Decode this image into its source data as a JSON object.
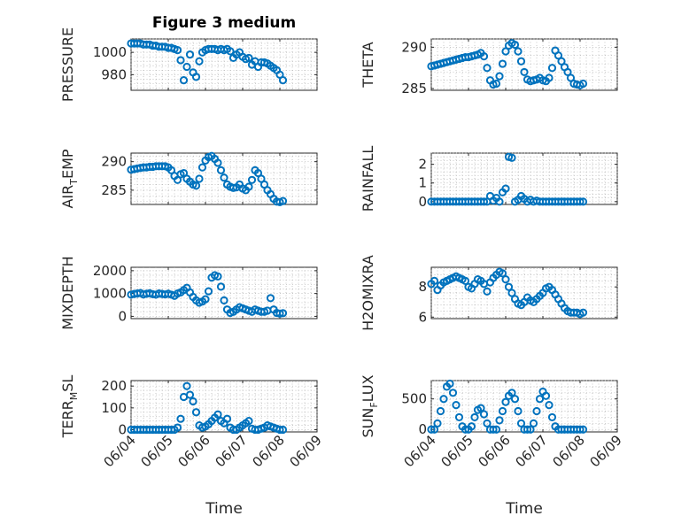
{
  "chart_data": [
    {
      "type": "scatter",
      "title": "Figure 3 medium",
      "ylabel": "PRESSURE",
      "yticks": [
        980,
        1000
      ],
      "ylim": [
        966,
        1012
      ],
      "x": [
        "06/04 0h",
        "06/04 2h",
        "06/04 4h",
        "06/04 6h",
        "06/04 8h",
        "06/04 10h",
        "06/04 12h",
        "06/04 14h",
        "06/04 16h",
        "06/04 18h",
        "06/04 20h",
        "06/04 22h",
        "06/05 0h",
        "06/05 2h",
        "06/05 4h",
        "06/05 6h",
        "06/05 8h",
        "06/05 10h",
        "06/05 12h",
        "06/05 14h",
        "06/05 16h",
        "06/05 18h",
        "06/05 20h",
        "06/05 22h",
        "06/06 0h",
        "06/06 2h",
        "06/06 4h",
        "06/06 6h",
        "06/06 8h",
        "06/06 10h",
        "06/06 12h",
        "06/06 14h",
        "06/06 16h",
        "06/06 18h",
        "06/06 20h",
        "06/06 22h",
        "06/07 0h",
        "06/07 2h",
        "06/07 4h",
        "06/07 6h",
        "06/07 8h",
        "06/07 10h",
        "06/07 12h",
        "06/07 14h",
        "06/07 16h",
        "06/07 18h",
        "06/07 20h",
        "06/07 22h",
        "06/08 0h",
        "06/08 2h"
      ],
      "y": [
        1008,
        1008,
        1008,
        1008,
        1007,
        1007,
        1007,
        1006,
        1006,
        1005,
        1005,
        1005,
        1004,
        1004,
        1003,
        1002,
        993,
        975,
        987,
        998,
        982,
        978,
        992,
        1000,
        1002,
        1003,
        1003,
        1003,
        1002,
        1003,
        1002,
        1003,
        1001,
        995,
        998,
        1000,
        996,
        994,
        995,
        989,
        992,
        987,
        991,
        991,
        990,
        988,
        986,
        984,
        980,
        975
      ]
    },
    {
      "type": "scatter",
      "ylabel": "THETA",
      "yticks": [
        285,
        290
      ],
      "ylim": [
        284.8,
        291
      ],
      "x": [
        "06/04 0h",
        "06/04 2h",
        "06/04 4h",
        "06/04 6h",
        "06/04 8h",
        "06/04 10h",
        "06/04 12h",
        "06/04 14h",
        "06/04 16h",
        "06/04 18h",
        "06/04 20h",
        "06/04 22h",
        "06/05 0h",
        "06/05 2h",
        "06/05 4h",
        "06/05 6h",
        "06/05 8h",
        "06/05 10h",
        "06/05 12h",
        "06/05 14h",
        "06/05 16h",
        "06/05 18h",
        "06/05 20h",
        "06/05 22h",
        "06/06 0h",
        "06/06 2h",
        "06/06 4h",
        "06/06 6h",
        "06/06 8h",
        "06/06 10h",
        "06/06 12h",
        "06/06 14h",
        "06/06 16h",
        "06/06 18h",
        "06/06 20h",
        "06/06 22h",
        "06/07 0h",
        "06/07 2h",
        "06/07 4h",
        "06/07 6h",
        "06/07 8h",
        "06/07 10h",
        "06/07 12h",
        "06/07 14h",
        "06/07 16h",
        "06/07 18h",
        "06/07 20h",
        "06/07 22h",
        "06/08 0h",
        "06/08 2h"
      ],
      "y": [
        287.7,
        287.8,
        287.9,
        288.0,
        288.1,
        288.2,
        288.3,
        288.4,
        288.5,
        288.6,
        288.7,
        288.8,
        288.8,
        288.9,
        289.0,
        289.1,
        289.3,
        288.9,
        287.5,
        286.0,
        285.5,
        285.6,
        286.5,
        288.0,
        289.5,
        290.2,
        290.5,
        290.3,
        289.5,
        288.3,
        287.0,
        286.1,
        285.9,
        286.0,
        286.1,
        286.3,
        286.0,
        285.9,
        286.3,
        287.5,
        289.6,
        289.0,
        288.3,
        287.6,
        287.0,
        286.3,
        285.6,
        285.5,
        285.4,
        285.6
      ]
    },
    {
      "type": "scatter",
      "ylabel": "AIR_TEMP",
      "yticks": [
        285,
        290
      ],
      "ylim": [
        282.5,
        291.5
      ],
      "x": [
        "06/04 0h",
        "06/04 2h",
        "06/04 4h",
        "06/04 6h",
        "06/04 8h",
        "06/04 10h",
        "06/04 12h",
        "06/04 14h",
        "06/04 16h",
        "06/04 18h",
        "06/04 20h",
        "06/04 22h",
        "06/05 0h",
        "06/05 2h",
        "06/05 4h",
        "06/05 6h",
        "06/05 8h",
        "06/05 10h",
        "06/05 12h",
        "06/05 14h",
        "06/05 16h",
        "06/05 18h",
        "06/05 20h",
        "06/05 22h",
        "06/06 0h",
        "06/06 2h",
        "06/06 4h",
        "06/06 6h",
        "06/06 8h",
        "06/06 10h",
        "06/06 12h",
        "06/06 14h",
        "06/06 16h",
        "06/06 18h",
        "06/06 20h",
        "06/06 22h",
        "06/07 0h",
        "06/07 2h",
        "06/07 4h",
        "06/07 6h",
        "06/07 8h",
        "06/07 10h",
        "06/07 12h",
        "06/07 14h",
        "06/07 16h",
        "06/07 18h",
        "06/07 20h",
        "06/07 22h",
        "06/08 0h",
        "06/08 2h"
      ],
      "y": [
        288.6,
        288.7,
        288.8,
        288.9,
        289.0,
        289.0,
        289.1,
        289.1,
        289.2,
        289.2,
        289.2,
        289.2,
        289.0,
        288.5,
        287.5,
        286.8,
        287.8,
        288.0,
        287.0,
        286.5,
        286.0,
        285.8,
        287.0,
        289.0,
        290.2,
        290.8,
        291.0,
        290.5,
        289.8,
        288.5,
        287.2,
        286.0,
        285.6,
        285.4,
        285.5,
        286.0,
        285.3,
        285.0,
        285.6,
        286.8,
        288.5,
        288.0,
        287.0,
        286.0,
        285.0,
        284.3,
        283.5,
        283.0,
        282.9,
        283.1
      ]
    },
    {
      "type": "scatter",
      "ylabel": "RAINFALL",
      "yticks": [
        0,
        1,
        2
      ],
      "ylim": [
        -0.15,
        2.6
      ],
      "x": [
        "06/04 0h",
        "06/04 2h",
        "06/04 4h",
        "06/04 6h",
        "06/04 8h",
        "06/04 10h",
        "06/04 12h",
        "06/04 14h",
        "06/04 16h",
        "06/04 18h",
        "06/04 20h",
        "06/04 22h",
        "06/05 0h",
        "06/05 2h",
        "06/05 4h",
        "06/05 6h",
        "06/05 8h",
        "06/05 10h",
        "06/05 12h",
        "06/05 14h",
        "06/05 16h",
        "06/05 18h",
        "06/05 20h",
        "06/05 22h",
        "06/06 0h",
        "06/06 2h",
        "06/06 4h",
        "06/06 6h",
        "06/06 8h",
        "06/06 10h",
        "06/06 12h",
        "06/06 14h",
        "06/06 16h",
        "06/06 18h",
        "06/06 20h",
        "06/06 22h",
        "06/07 0h",
        "06/07 2h",
        "06/07 4h",
        "06/07 6h",
        "06/07 8h",
        "06/07 10h",
        "06/07 12h",
        "06/07 14h",
        "06/07 16h",
        "06/07 18h",
        "06/07 20h",
        "06/07 22h",
        "06/08 0h",
        "06/08 2h"
      ],
      "y": [
        0,
        0,
        0,
        0,
        0,
        0,
        0,
        0,
        0,
        0,
        0,
        0,
        0,
        0,
        0,
        0,
        0,
        0,
        0,
        0.3,
        0.05,
        0.2,
        0,
        0.5,
        0.7,
        2.4,
        2.35,
        0,
        0.1,
        0.3,
        0.15,
        0,
        0.1,
        0,
        0.05,
        0,
        0,
        0,
        0,
        0,
        0,
        0,
        0,
        0,
        0,
        0,
        0,
        0,
        0,
        0
      ]
    },
    {
      "type": "scatter",
      "ylabel": "MIXDEPTH",
      "yticks": [
        0,
        1000,
        2000
      ],
      "ylim": [
        -100,
        2150
      ],
      "x": [
        "06/04 0h",
        "06/04 2h",
        "06/04 4h",
        "06/04 6h",
        "06/04 8h",
        "06/04 10h",
        "06/04 12h",
        "06/04 14h",
        "06/04 16h",
        "06/04 18h",
        "06/04 20h",
        "06/04 22h",
        "06/05 0h",
        "06/05 2h",
        "06/05 4h",
        "06/05 6h",
        "06/05 8h",
        "06/05 10h",
        "06/05 12h",
        "06/05 14h",
        "06/05 16h",
        "06/05 18h",
        "06/05 20h",
        "06/05 22h",
        "06/06 0h",
        "06/06 2h",
        "06/06 4h",
        "06/06 6h",
        "06/06 8h",
        "06/06 10h",
        "06/06 12h",
        "06/06 14h",
        "06/06 16h",
        "06/06 18h",
        "06/06 20h",
        "06/06 22h",
        "06/07 0h",
        "06/07 2h",
        "06/07 4h",
        "06/07 6h",
        "06/07 8h",
        "06/07 10h",
        "06/07 12h",
        "06/07 14h",
        "06/07 16h",
        "06/07 18h",
        "06/07 20h",
        "06/07 22h",
        "06/08 0h",
        "06/08 2h"
      ],
      "y": [
        950,
        980,
        1000,
        1020,
        960,
        990,
        1010,
        970,
        950,
        1000,
        980,
        960,
        990,
        950,
        900,
        1000,
        1050,
        1150,
        1250,
        1050,
        850,
        700,
        600,
        650,
        750,
        1100,
        1700,
        1800,
        1750,
        1300,
        700,
        300,
        150,
        200,
        300,
        400,
        350,
        300,
        250,
        200,
        300,
        250,
        200,
        200,
        250,
        800,
        300,
        150,
        120,
        140
      ]
    },
    {
      "type": "scatter",
      "ylabel": "H2OMIXRA",
      "yticks": [
        6,
        8
      ],
      "ylim": [
        5.9,
        9.3
      ],
      "x": [
        "06/04 0h",
        "06/04 2h",
        "06/04 4h",
        "06/04 6h",
        "06/04 8h",
        "06/04 10h",
        "06/04 12h",
        "06/04 14h",
        "06/04 16h",
        "06/04 18h",
        "06/04 20h",
        "06/04 22h",
        "06/05 0h",
        "06/05 2h",
        "06/05 4h",
        "06/05 6h",
        "06/05 8h",
        "06/05 10h",
        "06/05 12h",
        "06/05 14h",
        "06/05 16h",
        "06/05 18h",
        "06/05 20h",
        "06/05 22h",
        "06/06 0h",
        "06/06 2h",
        "06/06 4h",
        "06/06 6h",
        "06/06 8h",
        "06/06 10h",
        "06/06 12h",
        "06/06 14h",
        "06/06 16h",
        "06/06 18h",
        "06/06 20h",
        "06/06 22h",
        "06/07 0h",
        "06/07 2h",
        "06/07 4h",
        "06/07 6h",
        "06/07 8h",
        "06/07 10h",
        "06/07 12h",
        "06/07 14h",
        "06/07 16h",
        "06/07 18h",
        "06/07 20h",
        "06/07 22h",
        "06/08 0h",
        "06/08 2h"
      ],
      "y": [
        8.2,
        8.4,
        7.8,
        8.1,
        8.3,
        8.4,
        8.5,
        8.6,
        8.7,
        8.6,
        8.5,
        8.4,
        8.0,
        7.9,
        8.2,
        8.5,
        8.4,
        8.2,
        7.7,
        8.3,
        8.6,
        8.8,
        9.0,
        8.9,
        8.5,
        8.0,
        7.6,
        7.2,
        6.9,
        6.8,
        7.0,
        7.3,
        7.1,
        7.0,
        7.2,
        7.4,
        7.6,
        7.9,
        8.0,
        7.8,
        7.5,
        7.2,
        6.9,
        6.6,
        6.4,
        6.3,
        6.3,
        6.3,
        6.2,
        6.3
      ]
    },
    {
      "type": "scatter",
      "ylabel": "TERR_MSL",
      "yticks": [
        0,
        100,
        200
      ],
      "ylim": [
        -10,
        225
      ],
      "x": [
        "06/04 0h",
        "06/04 2h",
        "06/04 4h",
        "06/04 6h",
        "06/04 8h",
        "06/04 10h",
        "06/04 12h",
        "06/04 14h",
        "06/04 16h",
        "06/04 18h",
        "06/04 20h",
        "06/04 22h",
        "06/05 0h",
        "06/05 2h",
        "06/05 4h",
        "06/05 6h",
        "06/05 8h",
        "06/05 10h",
        "06/05 12h",
        "06/05 14h",
        "06/05 16h",
        "06/05 18h",
        "06/05 20h",
        "06/05 22h",
        "06/06 0h",
        "06/06 2h",
        "06/06 4h",
        "06/06 6h",
        "06/06 8h",
        "06/06 10h",
        "06/06 12h",
        "06/06 14h",
        "06/06 16h",
        "06/06 18h",
        "06/06 20h",
        "06/06 22h",
        "06/07 0h",
        "06/07 2h",
        "06/07 4h",
        "06/07 6h",
        "06/07 8h",
        "06/07 10h",
        "06/07 12h",
        "06/07 14h",
        "06/07 16h",
        "06/07 18h",
        "06/07 20h",
        "06/07 22h",
        "06/08 0h",
        "06/08 2h"
      ],
      "y": [
        0,
        0,
        0,
        0,
        0,
        0,
        0,
        0,
        0,
        0,
        0,
        0,
        0,
        0,
        0,
        10,
        50,
        150,
        200,
        160,
        130,
        80,
        20,
        10,
        15,
        25,
        40,
        55,
        70,
        40,
        30,
        50,
        10,
        0,
        0,
        10,
        20,
        30,
        40,
        5,
        0,
        0,
        5,
        10,
        20,
        15,
        10,
        5,
        0,
        0
      ]
    },
    {
      "type": "scatter",
      "ylabel": "SUN_FLUX",
      "yticks": [
        0,
        500
      ],
      "ylim": [
        -40,
        800
      ],
      "x": [
        "06/04 0h",
        "06/04 2h",
        "06/04 4h",
        "06/04 6h",
        "06/04 8h",
        "06/04 10h",
        "06/04 12h",
        "06/04 14h",
        "06/04 16h",
        "06/04 18h",
        "06/04 20h",
        "06/04 22h",
        "06/05 0h",
        "06/05 2h",
        "06/05 4h",
        "06/05 6h",
        "06/05 8h",
        "06/05 10h",
        "06/05 12h",
        "06/05 14h",
        "06/05 16h",
        "06/05 18h",
        "06/05 20h",
        "06/05 22h",
        "06/06 0h",
        "06/06 2h",
        "06/06 4h",
        "06/06 6h",
        "06/06 8h",
        "06/06 10h",
        "06/06 12h",
        "06/06 14h",
        "06/06 16h",
        "06/06 18h",
        "06/06 20h",
        "06/06 22h",
        "06/07 0h",
        "06/07 2h",
        "06/07 4h",
        "06/07 6h",
        "06/07 8h",
        "06/07 10h",
        "06/07 12h",
        "06/07 14h",
        "06/07 16h",
        "06/07 18h",
        "06/07 20h",
        "06/07 22h",
        "06/08 0h",
        "06/08 2h"
      ],
      "y": [
        0,
        0,
        100,
        300,
        500,
        700,
        750,
        600,
        400,
        200,
        50,
        0,
        0,
        50,
        200,
        320,
        350,
        250,
        100,
        0,
        0,
        0,
        150,
        300,
        450,
        550,
        600,
        500,
        300,
        100,
        0,
        0,
        0,
        100,
        300,
        500,
        620,
        550,
        400,
        200,
        50,
        0,
        0,
        0,
        0,
        0,
        0,
        0,
        0,
        0
      ]
    }
  ],
  "x_axis": {
    "ticks": [
      "06/04",
      "06/05",
      "06/06",
      "06/07",
      "06/08",
      "06/09"
    ],
    "label": "Time"
  },
  "colors": {
    "marker": "#0072BD",
    "axes": "#262626",
    "grid": "#b0b0b0"
  }
}
